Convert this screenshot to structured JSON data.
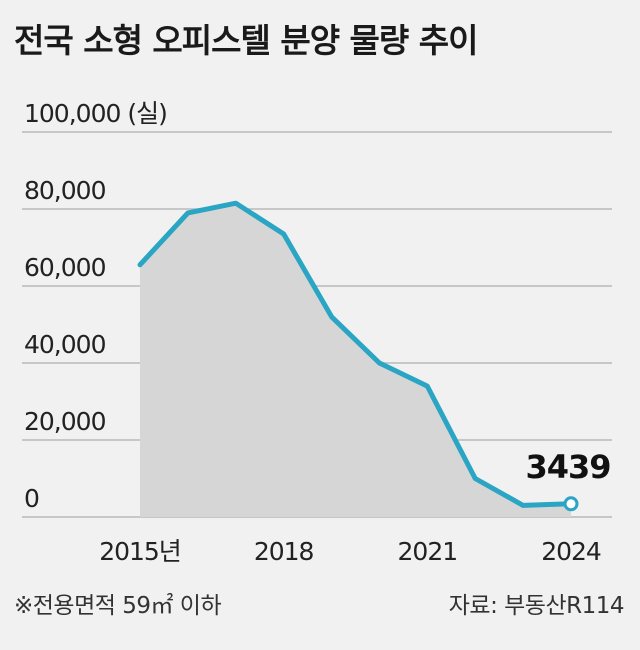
{
  "chart_data": {
    "type": "area",
    "title": "전국 소형 오피스텔 분양 물량 추이",
    "ylabel": "100,000 (실)",
    "y_ticks": [
      "0",
      "20,000",
      "40,000",
      "60,000",
      "80,000"
    ],
    "ylim": [
      0,
      100000
    ],
    "x": [
      2015,
      2016,
      2017,
      2018,
      2019,
      2020,
      2021,
      2022,
      2023,
      2024
    ],
    "x_tick_labels": [
      {
        "x": 2015,
        "label": "2015년"
      },
      {
        "x": 2018,
        "label": "2018"
      },
      {
        "x": 2021,
        "label": "2021"
      },
      {
        "x": 2024,
        "label": "2024"
      }
    ],
    "series": [
      {
        "values": [
          65500,
          79000,
          81500,
          73500,
          52000,
          40000,
          34000,
          10000,
          3000,
          3439
        ]
      }
    ],
    "annotation": {
      "x": 2024,
      "label": "3439"
    },
    "grid": true,
    "colors": {
      "line": "#2aa5c4",
      "fill": "#d6d6d6",
      "background": "#f1f1f1",
      "marker_fill": "#ffffff"
    }
  },
  "footnote": "※전용면적 59㎡ 이하",
  "source": "자료: 부동산R114"
}
